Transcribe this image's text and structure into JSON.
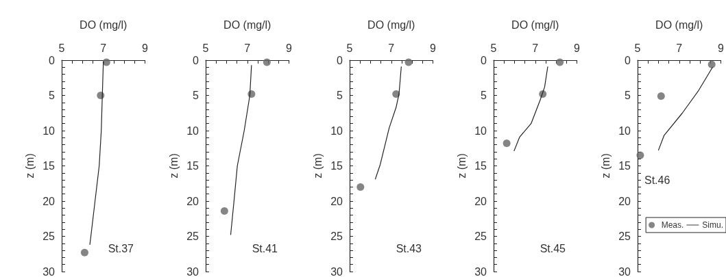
{
  "chart_data": [
    {
      "type": "line",
      "xlabel": "DO (mg/l)",
      "ylabel": "z (m)",
      "xlim": [
        5,
        9
      ],
      "ylim": [
        30,
        0
      ],
      "xticks": [
        5,
        {
          "value": 5.5,
          "label": null
        },
        {
          "value": 6,
          "label": null
        },
        {
          "value": 6.5,
          "label": null
        },
        7,
        {
          "value": 7.5,
          "label": null
        },
        {
          "value": 8,
          "label": null
        },
        {
          "value": 8.5,
          "label": null
        },
        9
      ],
      "yticks": [
        0,
        {
          "value": 1,
          "label": null
        },
        {
          "value": 2,
          "label": null
        },
        {
          "value": 3,
          "label": null
        },
        {
          "value": 4,
          "label": null
        },
        5,
        {
          "value": 6,
          "label": null
        },
        {
          "value": 7,
          "label": null
        },
        {
          "value": 8,
          "label": null
        },
        {
          "value": 9,
          "label": null
        },
        10,
        {
          "value": 11,
          "label": null
        },
        {
          "value": 12,
          "label": null
        },
        {
          "value": 13,
          "label": null
        },
        {
          "value": 14,
          "label": null
        },
        15,
        {
          "value": 16,
          "label": null
        },
        {
          "value": 17,
          "label": null
        },
        {
          "value": 18,
          "label": null
        },
        {
          "value": 19,
          "label": null
        },
        20,
        {
          "value": 21,
          "label": null
        },
        {
          "value": 22,
          "label": null
        },
        {
          "value": 23,
          "label": null
        },
        {
          "value": 24,
          "label": null
        },
        25,
        {
          "value": 26,
          "label": null
        },
        {
          "value": 27,
          "label": null
        },
        {
          "value": 28,
          "label": null
        },
        {
          "value": 29,
          "label": null
        },
        30
      ],
      "grid": false,
      "legend": false,
      "annotations": [
        "St.37"
      ],
      "series": [
        {
          "type": "scatter",
          "color": "#666666",
          "marker": "circle",
          "x": [
            7.15,
            6.87,
            6.1
          ],
          "values": [
            0.3,
            5,
            27.3
          ]
        },
        {
          "color": "#222222",
          "marker": "none",
          "x": [
            7.0,
            6.95,
            6.9,
            6.8,
            6.6,
            6.4,
            6.35
          ],
          "values": [
            0.2,
            5,
            10,
            15,
            20,
            25,
            26.2
          ]
        }
      ]
    },
    {
      "type": "line",
      "xlabel": "DO (mg/l)",
      "ylabel": "z (m)",
      "xlim": [
        5,
        9
      ],
      "ylim": [
        30,
        0
      ],
      "xticks": [
        5,
        {
          "value": 5.5,
          "label": null
        },
        {
          "value": 6,
          "label": null
        },
        {
          "value": 6.5,
          "label": null
        },
        7,
        {
          "value": 7.5,
          "label": null
        },
        {
          "value": 8,
          "label": null
        },
        {
          "value": 8.5,
          "label": null
        },
        9
      ],
      "yticks": [
        0,
        {
          "value": 1,
          "label": null
        },
        {
          "value": 2,
          "label": null
        },
        {
          "value": 3,
          "label": null
        },
        {
          "value": 4,
          "label": null
        },
        5,
        {
          "value": 6,
          "label": null
        },
        {
          "value": 7,
          "label": null
        },
        {
          "value": 8,
          "label": null
        },
        {
          "value": 9,
          "label": null
        },
        10,
        {
          "value": 11,
          "label": null
        },
        {
          "value": 12,
          "label": null
        },
        {
          "value": 13,
          "label": null
        },
        {
          "value": 14,
          "label": null
        },
        15,
        {
          "value": 16,
          "label": null
        },
        {
          "value": 17,
          "label": null
        },
        {
          "value": 18,
          "label": null
        },
        {
          "value": 19,
          "label": null
        },
        20,
        {
          "value": 21,
          "label": null
        },
        {
          "value": 22,
          "label": null
        },
        {
          "value": 23,
          "label": null
        },
        {
          "value": 24,
          "label": null
        },
        25,
        {
          "value": 26,
          "label": null
        },
        {
          "value": 27,
          "label": null
        },
        {
          "value": 28,
          "label": null
        },
        {
          "value": 29,
          "label": null
        },
        30
      ],
      "grid": false,
      "legend": false,
      "annotations": [
        "St.41"
      ],
      "series": [
        {
          "type": "scatter",
          "color": "#666666",
          "marker": "circle",
          "x": [
            7.94,
            7.2,
            5.9
          ],
          "values": [
            0.3,
            4.8,
            21.4
          ]
        },
        {
          "color": "#222222",
          "marker": "none",
          "x": [
            7.2,
            7.12,
            6.85,
            6.52,
            6.36,
            6.2
          ],
          "values": [
            0.7,
            5,
            10,
            15,
            20,
            24.8
          ]
        }
      ]
    },
    {
      "type": "line",
      "xlabel": "DO (mg/l)",
      "ylabel": "z (m)",
      "xlim": [
        5,
        9
      ],
      "ylim": [
        30,
        0
      ],
      "xticks": [
        5,
        {
          "value": 5.5,
          "label": null
        },
        {
          "value": 6,
          "label": null
        },
        {
          "value": 6.5,
          "label": null
        },
        7,
        {
          "value": 7.5,
          "label": null
        },
        {
          "value": 8,
          "label": null
        },
        {
          "value": 8.5,
          "label": null
        },
        9
      ],
      "yticks": [
        0,
        {
          "value": 1,
          "label": null
        },
        {
          "value": 2,
          "label": null
        },
        {
          "value": 3,
          "label": null
        },
        {
          "value": 4,
          "label": null
        },
        5,
        {
          "value": 6,
          "label": null
        },
        {
          "value": 7,
          "label": null
        },
        {
          "value": 8,
          "label": null
        },
        {
          "value": 9,
          "label": null
        },
        10,
        {
          "value": 11,
          "label": null
        },
        {
          "value": 12,
          "label": null
        },
        {
          "value": 13,
          "label": null
        },
        {
          "value": 14,
          "label": null
        },
        15,
        {
          "value": 16,
          "label": null
        },
        {
          "value": 17,
          "label": null
        },
        {
          "value": 18,
          "label": null
        },
        {
          "value": 19,
          "label": null
        },
        20,
        {
          "value": 21,
          "label": null
        },
        {
          "value": 22,
          "label": null
        },
        {
          "value": 23,
          "label": null
        },
        {
          "value": 24,
          "label": null
        },
        25,
        {
          "value": 26,
          "label": null
        },
        {
          "value": 27,
          "label": null
        },
        {
          "value": 28,
          "label": null
        },
        {
          "value": 29,
          "label": null
        },
        30
      ],
      "grid": false,
      "legend": false,
      "annotations": [
        "St.43"
      ],
      "series": [
        {
          "type": "scatter",
          "color": "#666666",
          "marker": "circle",
          "x": [
            7.83,
            7.23,
            5.52
          ],
          "values": [
            0.3,
            4.8,
            18
          ]
        },
        {
          "color": "#222222",
          "marker": "none",
          "x": [
            7.48,
            7.37,
            7.23,
            6.9,
            6.47,
            6.23
          ],
          "values": [
            0.9,
            4.8,
            6.7,
            9.6,
            14.8,
            16.9
          ]
        }
      ]
    },
    {
      "type": "line",
      "xlabel": "DO (mg/l)",
      "ylabel": "z (m)",
      "xlim": [
        5,
        9
      ],
      "ylim": [
        30,
        0
      ],
      "xticks": [
        5,
        {
          "value": 5.5,
          "label": null
        },
        {
          "value": 6,
          "label": null
        },
        {
          "value": 6.5,
          "label": null
        },
        7,
        {
          "value": 7.5,
          "label": null
        },
        {
          "value": 8,
          "label": null
        },
        {
          "value": 8.5,
          "label": null
        },
        9
      ],
      "yticks": [
        0,
        {
          "value": 1,
          "label": null
        },
        {
          "value": 2,
          "label": null
        },
        {
          "value": 3,
          "label": null
        },
        {
          "value": 4,
          "label": null
        },
        5,
        {
          "value": 6,
          "label": null
        },
        {
          "value": 7,
          "label": null
        },
        {
          "value": 8,
          "label": null
        },
        {
          "value": 9,
          "label": null
        },
        10,
        {
          "value": 11,
          "label": null
        },
        {
          "value": 12,
          "label": null
        },
        {
          "value": 13,
          "label": null
        },
        {
          "value": 14,
          "label": null
        },
        15,
        {
          "value": 16,
          "label": null
        },
        {
          "value": 17,
          "label": null
        },
        {
          "value": 18,
          "label": null
        },
        {
          "value": 19,
          "label": null
        },
        20,
        {
          "value": 21,
          "label": null
        },
        {
          "value": 22,
          "label": null
        },
        {
          "value": 23,
          "label": null
        },
        {
          "value": 24,
          "label": null
        },
        25,
        {
          "value": 26,
          "label": null
        },
        {
          "value": 27,
          "label": null
        },
        {
          "value": 28,
          "label": null
        },
        {
          "value": 29,
          "label": null
        },
        30
      ],
      "grid": false,
      "legend": false,
      "annotations": [
        "St.45"
      ],
      "series": [
        {
          "type": "scatter",
          "color": "#666666",
          "marker": "circle",
          "x": [
            8.18,
            7.36,
            5.63
          ],
          "values": [
            0.3,
            4.8,
            11.8
          ]
        },
        {
          "color": "#222222",
          "marker": "none",
          "x": [
            7.6,
            7.45,
            7.23,
            6.8,
            6.25,
            5.98
          ],
          "values": [
            0.9,
            3.8,
            5.7,
            9,
            10.9,
            12.9
          ]
        }
      ]
    },
    {
      "type": "line",
      "xlabel": "DO (mg/l)",
      "ylabel": "z (m)",
      "xlim": [
        5,
        9
      ],
      "ylim": [
        30,
        0
      ],
      "xticks": [
        5,
        {
          "value": 5.5,
          "label": null
        },
        {
          "value": 6,
          "label": null
        },
        {
          "value": 6.5,
          "label": null
        },
        7,
        {
          "value": 7.5,
          "label": null
        },
        {
          "value": 8,
          "label": null
        },
        {
          "value": 8.5,
          "label": null
        },
        9
      ],
      "yticks": [
        0,
        {
          "value": 1,
          "label": null
        },
        {
          "value": 2,
          "label": null
        },
        {
          "value": 3,
          "label": null
        },
        {
          "value": 4,
          "label": null
        },
        5,
        {
          "value": 6,
          "label": null
        },
        {
          "value": 7,
          "label": null
        },
        {
          "value": 8,
          "label": null
        },
        {
          "value": 9,
          "label": null
        },
        10,
        {
          "value": 11,
          "label": null
        },
        {
          "value": 12,
          "label": null
        },
        {
          "value": 13,
          "label": null
        },
        {
          "value": 14,
          "label": null
        },
        15,
        {
          "value": 16,
          "label": null
        },
        {
          "value": 17,
          "label": null
        },
        {
          "value": 18,
          "label": null
        },
        {
          "value": 19,
          "label": null
        },
        20,
        {
          "value": 21,
          "label": null
        },
        {
          "value": 22,
          "label": null
        },
        {
          "value": 23,
          "label": null
        },
        {
          "value": 24,
          "label": null
        },
        25,
        {
          "value": 26,
          "label": null
        },
        {
          "value": 27,
          "label": null
        },
        {
          "value": 28,
          "label": null
        },
        {
          "value": 29,
          "label": null
        },
        30
      ],
      "grid": false,
      "legend": "bottom right",
      "annotations": [
        "St.46"
      ],
      "series": [
        {
          "name": "Meas.",
          "type": "scatter",
          "color": "#666666",
          "marker": "circle",
          "x": [
            8.56,
            6.13,
            5.13
          ],
          "values": [
            0.6,
            5.1,
            13.5
          ]
        },
        {
          "name": "Simu.",
          "color": "#222222",
          "marker": "none",
          "x": [
            8.6,
            7.93,
            7.15,
            6.27,
            6.0
          ],
          "values": [
            1,
            4.3,
            7.5,
            10.7,
            12.8
          ]
        }
      ]
    }
  ]
}
